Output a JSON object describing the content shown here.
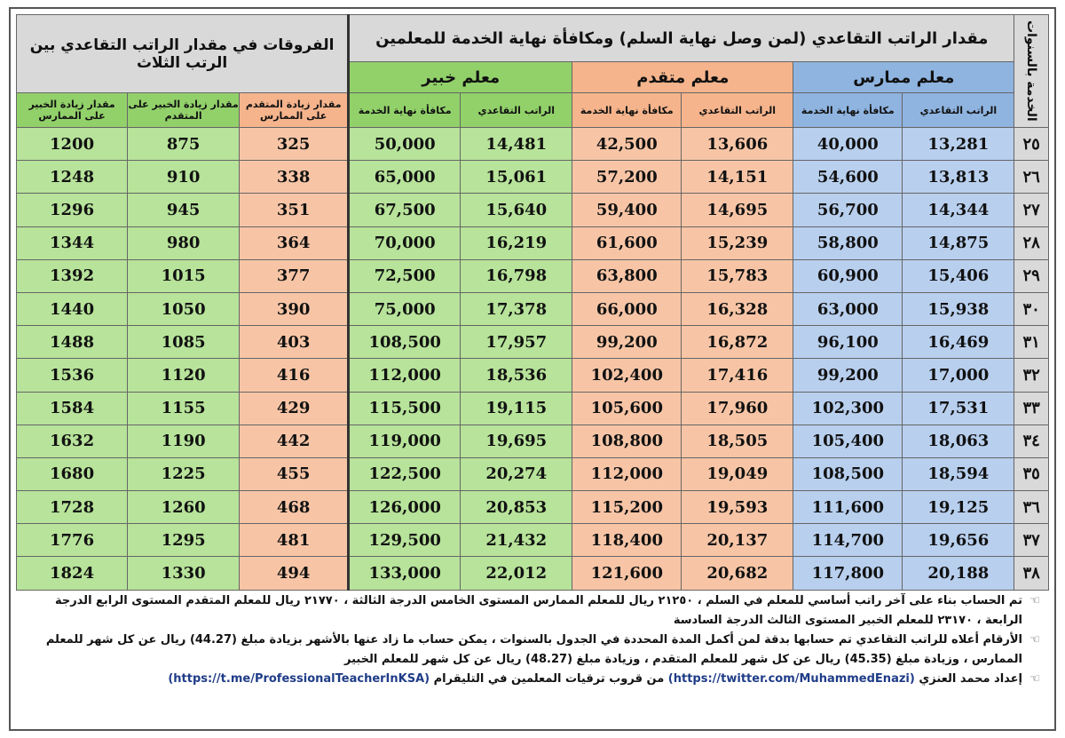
{
  "header": {
    "years_label": "الخدمة بالسنوات",
    "main_title": "مقدار الراتب التقاعدي (لمن وصل نهاية السلم) ومكافأة نهاية الخدمة للمعلمين",
    "diff_title": "الفروقات في مقدار الراتب التقاعدي بين الرتب الثلاث",
    "rank_practitioner": "معلم ممارس",
    "rank_advanced": "معلم متقدم",
    "rank_expert": "معلم خبير",
    "sub_pension": "الراتب التقاعدي",
    "sub_reward": "مكافأة نهاية الخدمة",
    "sub_adv_over_prac": "مقدار زيادة المتقدم على الممارس",
    "sub_exp_over_adv": "مقدار زيادة الخبير على المتقدم",
    "sub_exp_over_prac": "مقدار زيادة الخبير على الممارس"
  },
  "rows": [
    {
      "years": "٢٥",
      "p_pension": "13,281",
      "p_reward": "40,000",
      "a_pension": "13,606",
      "a_reward": "42,500",
      "e_pension": "14,481",
      "e_reward": "50,000",
      "d_ap": "325",
      "d_ea": "875",
      "d_ep": "1200"
    },
    {
      "years": "٢٦",
      "p_pension": "13,813",
      "p_reward": "54,600",
      "a_pension": "14,151",
      "a_reward": "57,200",
      "e_pension": "15,061",
      "e_reward": "65,000",
      "d_ap": "338",
      "d_ea": "910",
      "d_ep": "1248"
    },
    {
      "years": "٢٧",
      "p_pension": "14,344",
      "p_reward": "56,700",
      "a_pension": "14,695",
      "a_reward": "59,400",
      "e_pension": "15,640",
      "e_reward": "67,500",
      "d_ap": "351",
      "d_ea": "945",
      "d_ep": "1296"
    },
    {
      "years": "٢٨",
      "p_pension": "14,875",
      "p_reward": "58,800",
      "a_pension": "15,239",
      "a_reward": "61,600",
      "e_pension": "16,219",
      "e_reward": "70,000",
      "d_ap": "364",
      "d_ea": "980",
      "d_ep": "1344"
    },
    {
      "years": "٢٩",
      "p_pension": "15,406",
      "p_reward": "60,900",
      "a_pension": "15,783",
      "a_reward": "63,800",
      "e_pension": "16,798",
      "e_reward": "72,500",
      "d_ap": "377",
      "d_ea": "1015",
      "d_ep": "1392"
    },
    {
      "years": "٣٠",
      "p_pension": "15,938",
      "p_reward": "63,000",
      "a_pension": "16,328",
      "a_reward": "66,000",
      "e_pension": "17,378",
      "e_reward": "75,000",
      "d_ap": "390",
      "d_ea": "1050",
      "d_ep": "1440"
    },
    {
      "years": "٣١",
      "p_pension": "16,469",
      "p_reward": "96,100",
      "a_pension": "16,872",
      "a_reward": "99,200",
      "e_pension": "17,957",
      "e_reward": "108,500",
      "d_ap": "403",
      "d_ea": "1085",
      "d_ep": "1488"
    },
    {
      "years": "٣٢",
      "p_pension": "17,000",
      "p_reward": "99,200",
      "a_pension": "17,416",
      "a_reward": "102,400",
      "e_pension": "18,536",
      "e_reward": "112,000",
      "d_ap": "416",
      "d_ea": "1120",
      "d_ep": "1536"
    },
    {
      "years": "٣٣",
      "p_pension": "17,531",
      "p_reward": "102,300",
      "a_pension": "17,960",
      "a_reward": "105,600",
      "e_pension": "19,115",
      "e_reward": "115,500",
      "d_ap": "429",
      "d_ea": "1155",
      "d_ep": "1584"
    },
    {
      "years": "٣٤",
      "p_pension": "18,063",
      "p_reward": "105,400",
      "a_pension": "18,505",
      "a_reward": "108,800",
      "e_pension": "19,695",
      "e_reward": "119,000",
      "d_ap": "442",
      "d_ea": "1190",
      "d_ep": "1632"
    },
    {
      "years": "٣٥",
      "p_pension": "18,594",
      "p_reward": "108,500",
      "a_pension": "19,049",
      "a_reward": "112,000",
      "e_pension": "20,274",
      "e_reward": "122,500",
      "d_ap": "455",
      "d_ea": "1225",
      "d_ep": "1680"
    },
    {
      "years": "٣٦",
      "p_pension": "19,125",
      "p_reward": "111,600",
      "a_pension": "19,593",
      "a_reward": "115,200",
      "e_pension": "20,853",
      "e_reward": "126,000",
      "d_ap": "468",
      "d_ea": "1260",
      "d_ep": "1728"
    },
    {
      "years": "٣٧",
      "p_pension": "19,656",
      "p_reward": "114,700",
      "a_pension": "20,137",
      "a_reward": "118,400",
      "e_pension": "21,432",
      "e_reward": "129,500",
      "d_ap": "481",
      "d_ea": "1295",
      "d_ep": "1776"
    },
    {
      "years": "٣٨",
      "p_pension": "20,188",
      "p_reward": "117,800",
      "a_pension": "20,682",
      "a_reward": "121,600",
      "e_pension": "22,012",
      "e_reward": "133,000",
      "d_ap": "494",
      "d_ea": "1330",
      "d_ep": "1824"
    }
  ],
  "notes": {
    "note1": "تم الحساب بناء على آخر راتب أساسي للمعلم في السلم ، ٢١٢٥٠ ريال للمعلم الممارس المستوى الخامس الدرجة الثالثة ، ٢١٧٧٠ ريال للمعلم المتقدم المستوى الرابع الدرجة الرابعة ، ٢٣١٧٠ للمعلم الخبير المستوى الثالث الدرجة السادسة",
    "note2": "الأرقام أعلاه للراتب التقاعدي تم حسابها بدقة لمن أكمل المدة المحددة في الجدول بالسنوات ، يمكن حساب ما زاد عنها بالأشهر بزيادة مبلغ (44.27) ريال عن كل شهر للمعلم الممارس ، وزيادة مبلغ (45.35) ريال عن كل شهر للمعلم المتقدم ، وزيادة مبلغ (48.27) ريال عن كل شهر للمعلم الخبير",
    "note3_prefix": "إعداد محمد العنزي",
    "note3_link1": "(https://twitter.com/MuhammedEnazi)",
    "note3_middle": "من قروب ترقيات المعلمين في التليقرام",
    "note3_link2": "(https://t.me/ProfessionalTeacherInKSA)",
    "hand_icon": "☜"
  }
}
